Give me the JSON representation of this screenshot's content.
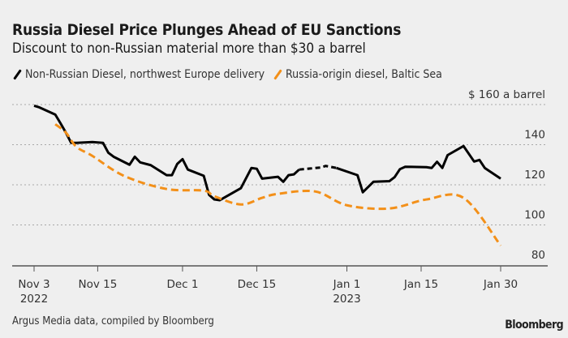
{
  "chart_data": {
    "type": "line",
    "title": "Russia Diesel Price Plunges Ahead of EU Sanctions",
    "subtitle": "Discount to non-Russian material more than $30 a barrel",
    "unit_label": "$ 160 a barrel",
    "ylim": [
      80,
      160
    ],
    "yticks": [
      {
        "value": 160,
        "label": "$ 160 a barrel"
      },
      {
        "value": 140,
        "label": "140"
      },
      {
        "value": 120,
        "label": "120"
      },
      {
        "value": 100,
        "label": "100"
      },
      {
        "value": 80,
        "label": "80"
      }
    ],
    "xlim": [
      "2022-11-03",
      "2023-01-30"
    ],
    "xticks": [
      {
        "date": "2022-11-03",
        "label": "Nov 3",
        "sublabel": "2022"
      },
      {
        "date": "2022-11-15",
        "label": "Nov 15",
        "sublabel": ""
      },
      {
        "date": "2022-12-01",
        "label": "Dec 1",
        "sublabel": ""
      },
      {
        "date": "2022-12-15",
        "label": "Dec 15",
        "sublabel": ""
      },
      {
        "date": "2023-01-01",
        "label": "Jan 1",
        "sublabel": "2023"
      },
      {
        "date": "2023-01-15",
        "label": "Jan 15",
        "sublabel": ""
      },
      {
        "date": "2023-01-30",
        "label": "Jan 30",
        "sublabel": ""
      }
    ],
    "grid": true,
    "legend_placement": "top-left",
    "series": [
      {
        "name": "Non-Russian Diesel, northwest Europe delivery",
        "color": "#000000",
        "style": "solid",
        "dashed_between": [
          "2022-12-23",
          "2022-12-30"
        ],
        "points": [
          [
            "2022-11-03",
            159.4
          ],
          [
            "2022-11-04",
            158.6
          ],
          [
            "2022-11-07",
            155.0
          ],
          [
            "2022-11-08",
            150.6
          ],
          [
            "2022-11-09",
            146.0
          ],
          [
            "2022-11-10",
            140.9
          ],
          [
            "2022-11-11",
            140.9
          ],
          [
            "2022-11-14",
            141.3
          ],
          [
            "2022-11-16",
            140.9
          ],
          [
            "2022-11-17",
            136.0
          ],
          [
            "2022-11-18",
            134.0
          ],
          [
            "2022-11-21",
            130.0
          ],
          [
            "2022-11-22",
            134.0
          ],
          [
            "2022-11-23",
            131.2
          ],
          [
            "2022-11-25",
            129.8
          ],
          [
            "2022-11-28",
            124.8
          ],
          [
            "2022-11-29",
            124.8
          ],
          [
            "2022-11-30",
            130.4
          ],
          [
            "2022-12-01",
            132.8
          ],
          [
            "2022-12-02",
            127.6
          ],
          [
            "2022-12-05",
            124.5
          ],
          [
            "2022-12-06",
            115.0
          ],
          [
            "2022-12-07",
            112.7
          ],
          [
            "2022-12-08",
            112.3
          ],
          [
            "2022-12-12",
            118.3
          ],
          [
            "2022-12-14",
            128.4
          ],
          [
            "2022-12-15",
            128.0
          ],
          [
            "2022-12-16",
            123.1
          ],
          [
            "2022-12-19",
            124.0
          ],
          [
            "2022-12-20",
            121.5
          ],
          [
            "2022-12-21",
            124.8
          ],
          [
            "2022-12-22",
            125.2
          ],
          [
            "2022-12-23",
            127.6
          ],
          [
            "2022-12-27",
            128.6
          ],
          [
            "2022-12-28",
            129.4
          ],
          [
            "2022-12-30",
            128.4
          ],
          [
            "2023-01-03",
            124.8
          ],
          [
            "2023-01-04",
            116.3
          ],
          [
            "2023-01-06",
            121.5
          ],
          [
            "2023-01-09",
            121.8
          ],
          [
            "2023-01-10",
            123.8
          ],
          [
            "2023-01-11",
            127.8
          ],
          [
            "2023-01-12",
            129.0
          ],
          [
            "2023-01-16",
            128.8
          ],
          [
            "2023-01-17",
            128.4
          ],
          [
            "2023-01-18",
            131.5
          ],
          [
            "2023-01-19",
            128.4
          ],
          [
            "2023-01-20",
            134.8
          ],
          [
            "2023-01-23",
            139.3
          ],
          [
            "2023-01-25",
            131.6
          ],
          [
            "2023-01-26",
            132.4
          ],
          [
            "2023-01-27",
            128.4
          ],
          [
            "2023-01-30",
            123.1
          ]
        ]
      },
      {
        "name": "Russia-origin diesel, Baltic Sea",
        "color": "#f39019",
        "style": "dashed",
        "points": [
          [
            "2022-11-07",
            150.2
          ],
          [
            "2022-11-09",
            146.0
          ],
          [
            "2022-11-11",
            138.9
          ],
          [
            "2022-11-14",
            134.4
          ],
          [
            "2022-11-20",
            124.4
          ],
          [
            "2022-11-28",
            117.9
          ],
          [
            "2022-12-05",
            117.1
          ],
          [
            "2022-12-07",
            114.3
          ],
          [
            "2022-12-12",
            110.2
          ],
          [
            "2022-12-16",
            113.5
          ],
          [
            "2022-12-19",
            115.5
          ],
          [
            "2022-12-26",
            116.7
          ],
          [
            "2023-01-01",
            109.8
          ],
          [
            "2023-01-09",
            108.2
          ],
          [
            "2023-01-16",
            112.7
          ],
          [
            "2023-01-23",
            113.5
          ],
          [
            "2023-01-30",
            89.7
          ]
        ]
      }
    ]
  },
  "footer": {
    "source": "Argus Media data, compiled by Bloomberg",
    "logo": "Bloomberg"
  }
}
